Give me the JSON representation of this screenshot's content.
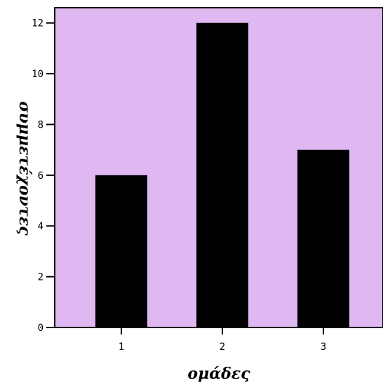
{
  "chart_data": {
    "type": "bar",
    "categories": [
      "1",
      "2",
      "3"
    ],
    "values": [
      6,
      12,
      7
    ],
    "xlabel": "ομάδες",
    "ylabel": "συμμετέχοντες",
    "ylim": [
      0,
      12.6
    ],
    "yticks": [
      0,
      2,
      4,
      6,
      8,
      10,
      12
    ],
    "grid": false,
    "legend": "none",
    "colors": {
      "plot_background": "#dfb8f2",
      "bar_fill": "#000000",
      "axis": "#000000"
    }
  }
}
